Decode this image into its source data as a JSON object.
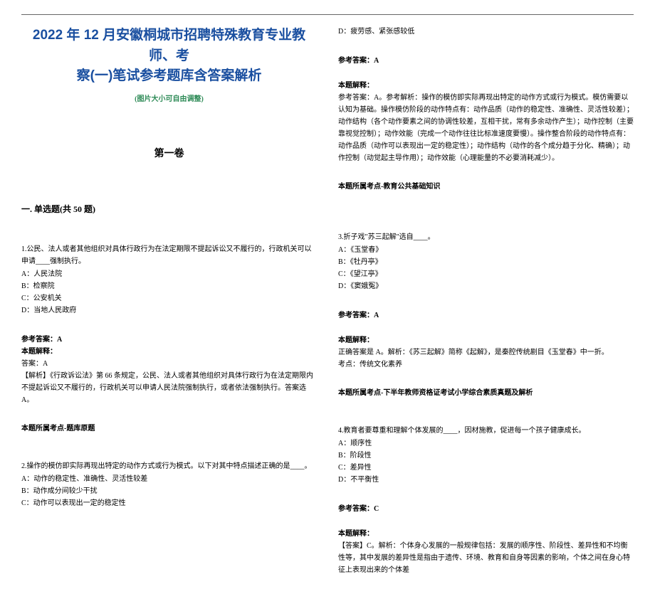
{
  "colors": {
    "title": "#1a4fa0",
    "subtitle": "#2e8b57",
    "body": "#000000",
    "line": "#666666",
    "background": "#ffffff"
  },
  "fonts": {
    "title_family": "SimHei",
    "body_family": "SimSun",
    "title_size": 19,
    "subtitle_size": 10,
    "volume_size": 14,
    "section_size": 12,
    "body_size": 10
  },
  "title_line1": "2022 年 12 月安徽桐城市招聘特殊教育专业教师、考",
  "title_line2": "察(一)笔试参考题库含答案解析",
  "subtitle": "(图片大小可自由调整)",
  "volume": "第一卷",
  "section_header": "一. 单选题(共 50 题)",
  "q1": {
    "stem": "1.公民、法人或者其他组织对具体行政行为在法定期限不提起诉讼又不履行的，行政机关可以申请____强制执行。",
    "optA": "A：人民法院",
    "optB": "B：检察院",
    "optC": "C：公安机关",
    "optD": "D：当地人民政府",
    "answer": "参考答案：A",
    "explain_label": "本题解释：",
    "explain1": "答案：A",
    "explain2": "【解析】《行政诉讼法》第 66 条规定，公民、法人或者其他组织对具体行政行为在法定期限内不提起诉讼又不履行的，行政机关可以申请人民法院强制执行，或者依法强制执行。答案选 A。",
    "topic": "本题所属考点-题库原题"
  },
  "q2": {
    "stem": "2.操作的模仿即实际再现出特定的动作方式或行为模式。以下对其中特点描述正确的是____。",
    "optA": "A：动作的稳定性、准确性、灵活性较差",
    "optB": "B：动作成分间较少干扰",
    "optC": "C：动作可以表现出一定的稳定性",
    "optD": "D：疲劳感、紧张感较低",
    "answer": "参考答案：A",
    "explain_label": "本题解释：",
    "explain1": "参考答案：A。参考解析：操作的模仿即实际再现出特定的动作方式或行为模式。模仿需要以认知为基础。操作模仿阶段的动作特点有：动作品质（动作的稳定性、准确性、灵活性较差）；动作结构（各个动作要素之间的协调性较差，互相干扰，常有多余动作产生）；动作控制（主要靠视觉控制）；动作效能（完成一个动作往往比标准速度要慢）。操作整合阶段的动作特点有：动作品质（动作可以表现出一定的稳定性）；动作结构（动作的各个成分趋于分化、精确）；动作控制（动觉起主导作用）；动作效能（心理能量的不必要消耗减少）。",
    "topic": "本题所属考点-教育公共基础知识"
  },
  "q3": {
    "stem": "3.折子戏\"苏三起解\"选自____。",
    "optA": "A：《玉堂春》",
    "optB": "B：《牡丹亭》",
    "optC": "C：《望江亭》",
    "optD": "D：《窦娥冤》",
    "answer": "参考答案：A",
    "explain_label": "本题解释：",
    "explain1": "正确答案是 A。解析：《苏三起解》简称《起解》，是秦腔传统剧目《玉堂春》中一折。",
    "kaodian": "考点：传统文化素养",
    "topic": "本题所属考点-下半年教师资格证考试小学综合素质真题及解析"
  },
  "q4": {
    "stem": "4.教育者要尊重和理解个体发展的____，因材施教，促进每一个孩子健康成长。",
    "optA": "A：顺序性",
    "optB": "B：阶段性",
    "optC": "C：差异性",
    "optD": "D：不平衡性",
    "answer": "参考答案：C",
    "explain_label": "本题解释：",
    "explain1": "【答案】C。解析：个体身心发展的一般规律包括：发展的顺序性、阶段性、差异性和不均衡性等，其中发展的差异性是指由于遗传、环境、教育和自身等因素的影响，个体之间在身心特征上表现出来的个体差"
  }
}
